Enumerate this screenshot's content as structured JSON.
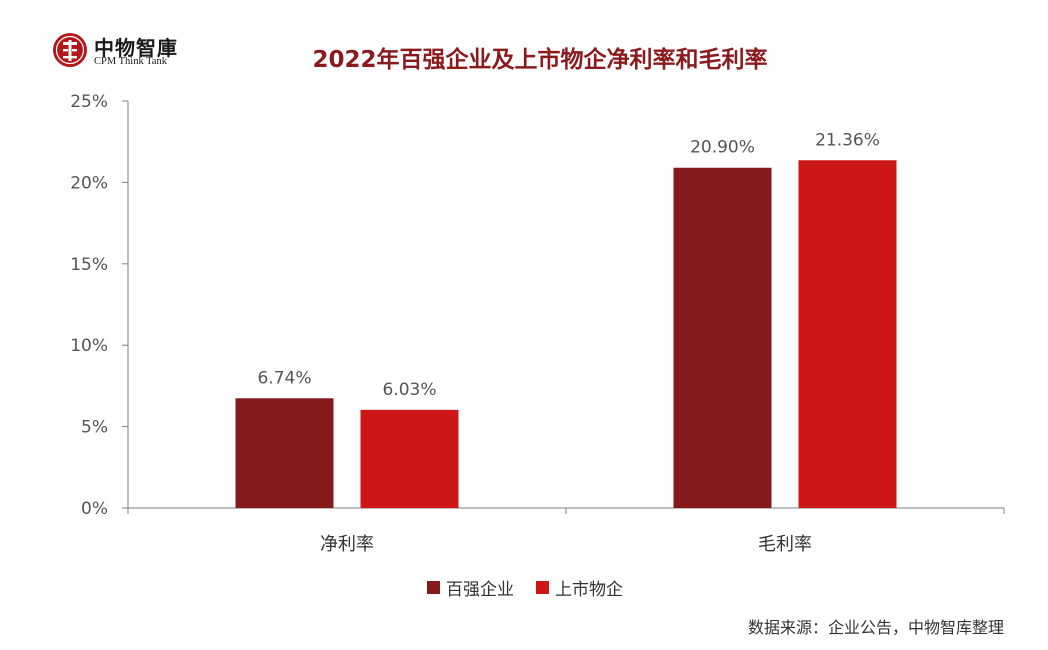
{
  "logo": {
    "name_cn": "中物智庫",
    "name_en": "CPM Think Tank",
    "icon": "logo-seal-icon"
  },
  "colors": {
    "series_1": "#861a1b",
    "series_2": "#cc1618",
    "title": "#8c1a1d",
    "axis": "#7f7f7f"
  },
  "chart_data": {
    "type": "bar",
    "title": "2022年百强企业及上市物企净利率和毛利率",
    "xlabel": "",
    "ylabel": "",
    "categories": [
      "净利率",
      "毛利率"
    ],
    "series": [
      {
        "name": "百强企业",
        "values": [
          6.74,
          20.9
        ],
        "labels": [
          "6.74%",
          "20.90%"
        ]
      },
      {
        "name": "上市物企",
        "values": [
          6.03,
          21.36
        ],
        "labels": [
          "6.03%",
          "21.36%"
        ]
      }
    ],
    "ylim": [
      0,
      25
    ],
    "y_ticks": [
      "0%",
      "5%",
      "10%",
      "15%",
      "20%",
      "25%"
    ],
    "y_tick_values": [
      0,
      5,
      10,
      15,
      20,
      25
    ],
    "legend_position": "bottom",
    "grid": false
  },
  "footer": {
    "source": "数据来源：企业公告，中物智库整理"
  }
}
